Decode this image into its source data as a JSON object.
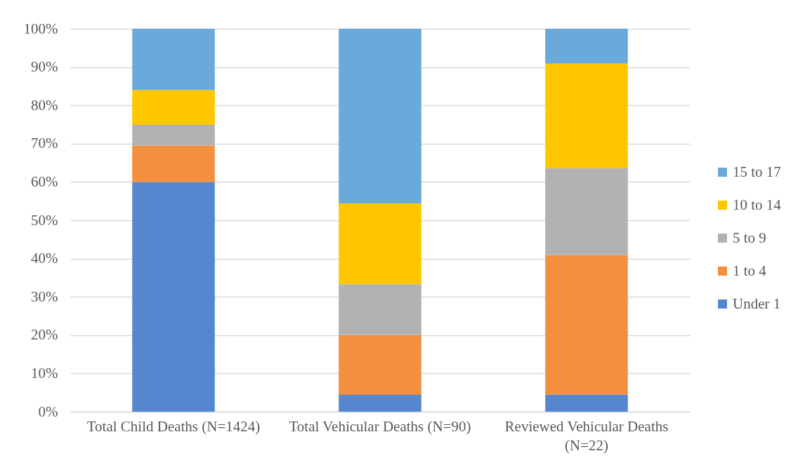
{
  "chart_data": {
    "type": "bar",
    "stacked": true,
    "categories": [
      "Total Child Deaths (N=1424)",
      "Total Vehicular Deaths (N=90)",
      "Reviewed Vehicular Deaths (N=22)"
    ],
    "series": [
      {
        "name": "Under 1",
        "color": "#5587ce",
        "values": [
          60,
          4.4,
          4.5
        ]
      },
      {
        "name": "1 to 4",
        "color": "#f2903f",
        "values": [
          9.5,
          15.6,
          36.4
        ]
      },
      {
        "name": "5 to 9",
        "color": "#b2b2b2",
        "values": [
          5.4,
          13.3,
          22.7
        ]
      },
      {
        "name": "10 to 14",
        "color": "#ffc700",
        "values": [
          9.1,
          21.1,
          27.3
        ]
      },
      {
        "name": "15 to 17",
        "color": "#6aaadb",
        "values": [
          16,
          45.6,
          9.1
        ]
      }
    ],
    "ylim": [
      0,
      100
    ],
    "yticks": [
      {
        "value": 0,
        "label": "0%"
      },
      {
        "value": 10,
        "label": "10%"
      },
      {
        "value": 20,
        "label": "20%"
      },
      {
        "value": 30,
        "label": "30%"
      },
      {
        "value": 40,
        "label": "40%"
      },
      {
        "value": 50,
        "label": "50%"
      },
      {
        "value": 60,
        "label": "60%"
      },
      {
        "value": 70,
        "label": "70%"
      },
      {
        "value": 80,
        "label": "80%"
      },
      {
        "value": 90,
        "label": "90%"
      },
      {
        "value": 100,
        "label": "100%"
      }
    ],
    "grid": "y",
    "legend": "right"
  }
}
